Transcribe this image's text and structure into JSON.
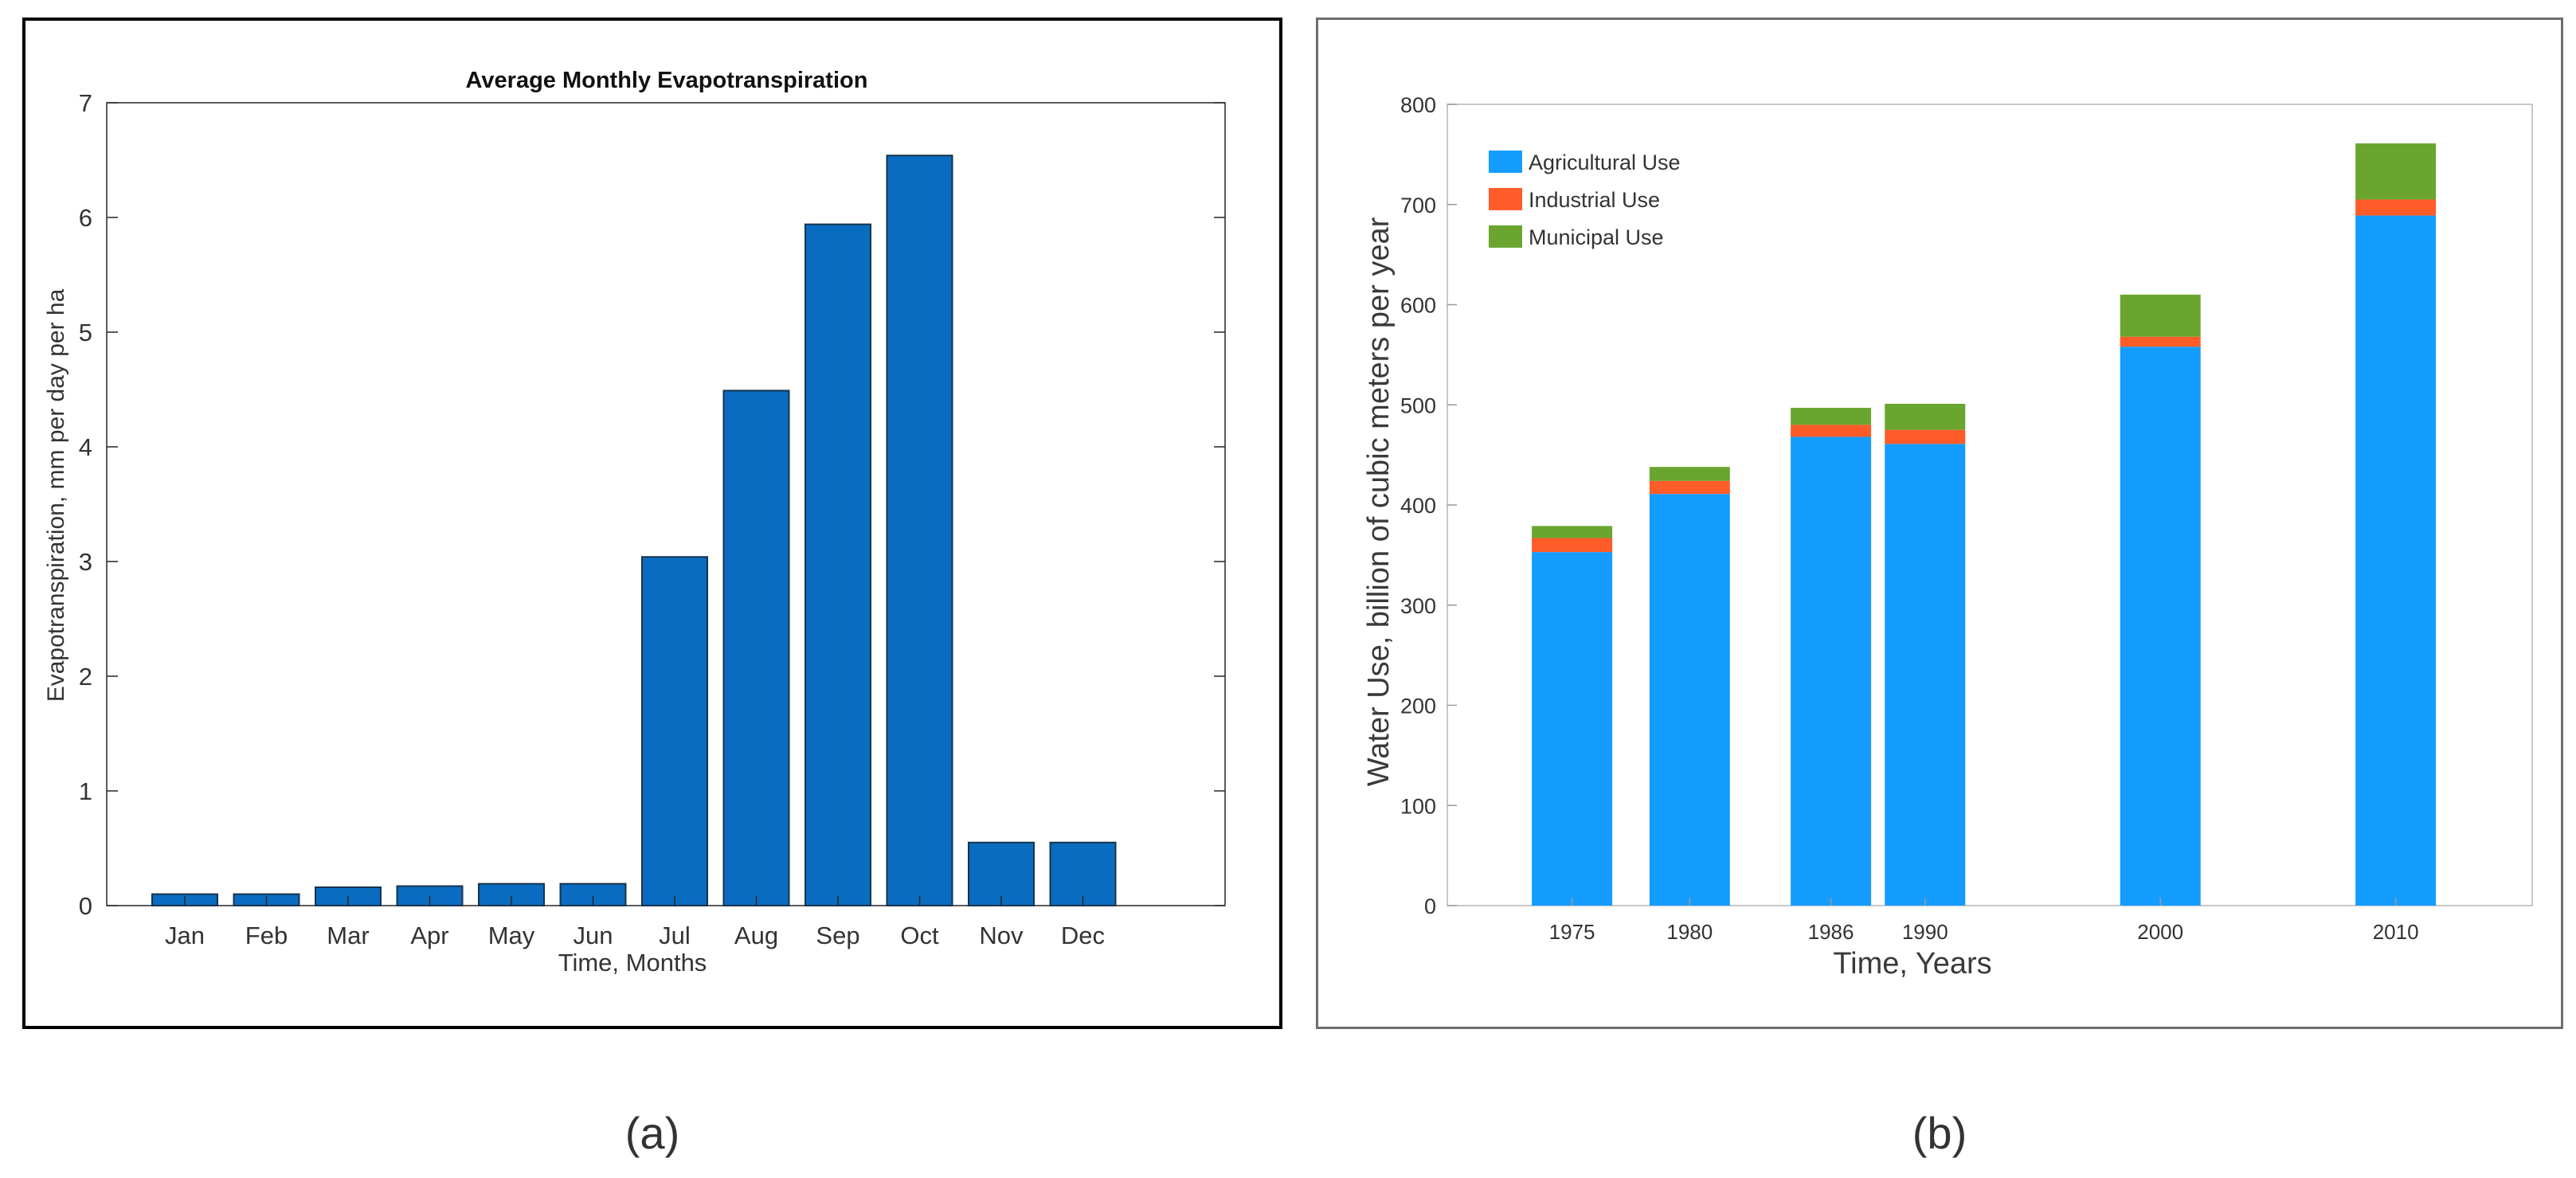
{
  "captions": {
    "a": "(a)",
    "b": "(b)"
  },
  "colors": {
    "bar_a": "#0a6cc0",
    "bar_a_edge": "#16334d",
    "agricultural": "#149cff",
    "industrial": "#ff5c29",
    "municipal": "#6aa62f"
  },
  "chart_data": [
    {
      "id": "a",
      "type": "bar",
      "title": "Average Monthly Evapotranspiration",
      "xlabel": "Time, Months",
      "ylabel": "Evapotranspiration, mm per day per ha",
      "categories": [
        "Jan",
        "Feb",
        "Mar",
        "Apr",
        "May",
        "Jun",
        "Jul",
        "Aug",
        "Sep",
        "Oct",
        "Nov",
        "Dec"
      ],
      "values": [
        0.1,
        0.1,
        0.16,
        0.17,
        0.19,
        0.19,
        3.04,
        4.49,
        5.94,
        6.54,
        0.55,
        0.55
      ],
      "ylim": [
        0,
        7
      ],
      "yticks": [
        "0",
        "1",
        "2",
        "3",
        "4",
        "5",
        "6",
        "7"
      ],
      "grid": false
    },
    {
      "id": "b",
      "type": "bar",
      "stacked": true,
      "title": "",
      "xlabel": "Time, Years",
      "ylabel": "Water Use, billion of cubic meters per year",
      "categories": [
        "1975",
        "1980",
        "1986",
        "1990",
        "2000",
        "2010"
      ],
      "x": [
        1975,
        1980,
        1986,
        1990,
        2000,
        2010
      ],
      "series": [
        {
          "name": "Agricultural Use",
          "values": [
            353,
            411,
            468,
            461,
            558,
            689
          ]
        },
        {
          "name": "Industrial Use",
          "values": [
            14,
            13,
            12,
            14,
            10,
            16
          ]
        },
        {
          "name": "Municipal Use",
          "values": [
            12,
            14,
            17,
            26,
            42,
            56
          ]
        }
      ],
      "ylim": [
        0,
        800
      ],
      "yticks": [
        "0",
        "100",
        "200",
        "300",
        "400",
        "500",
        "600",
        "700",
        "800"
      ],
      "legend": "top-left",
      "grid": false
    }
  ]
}
